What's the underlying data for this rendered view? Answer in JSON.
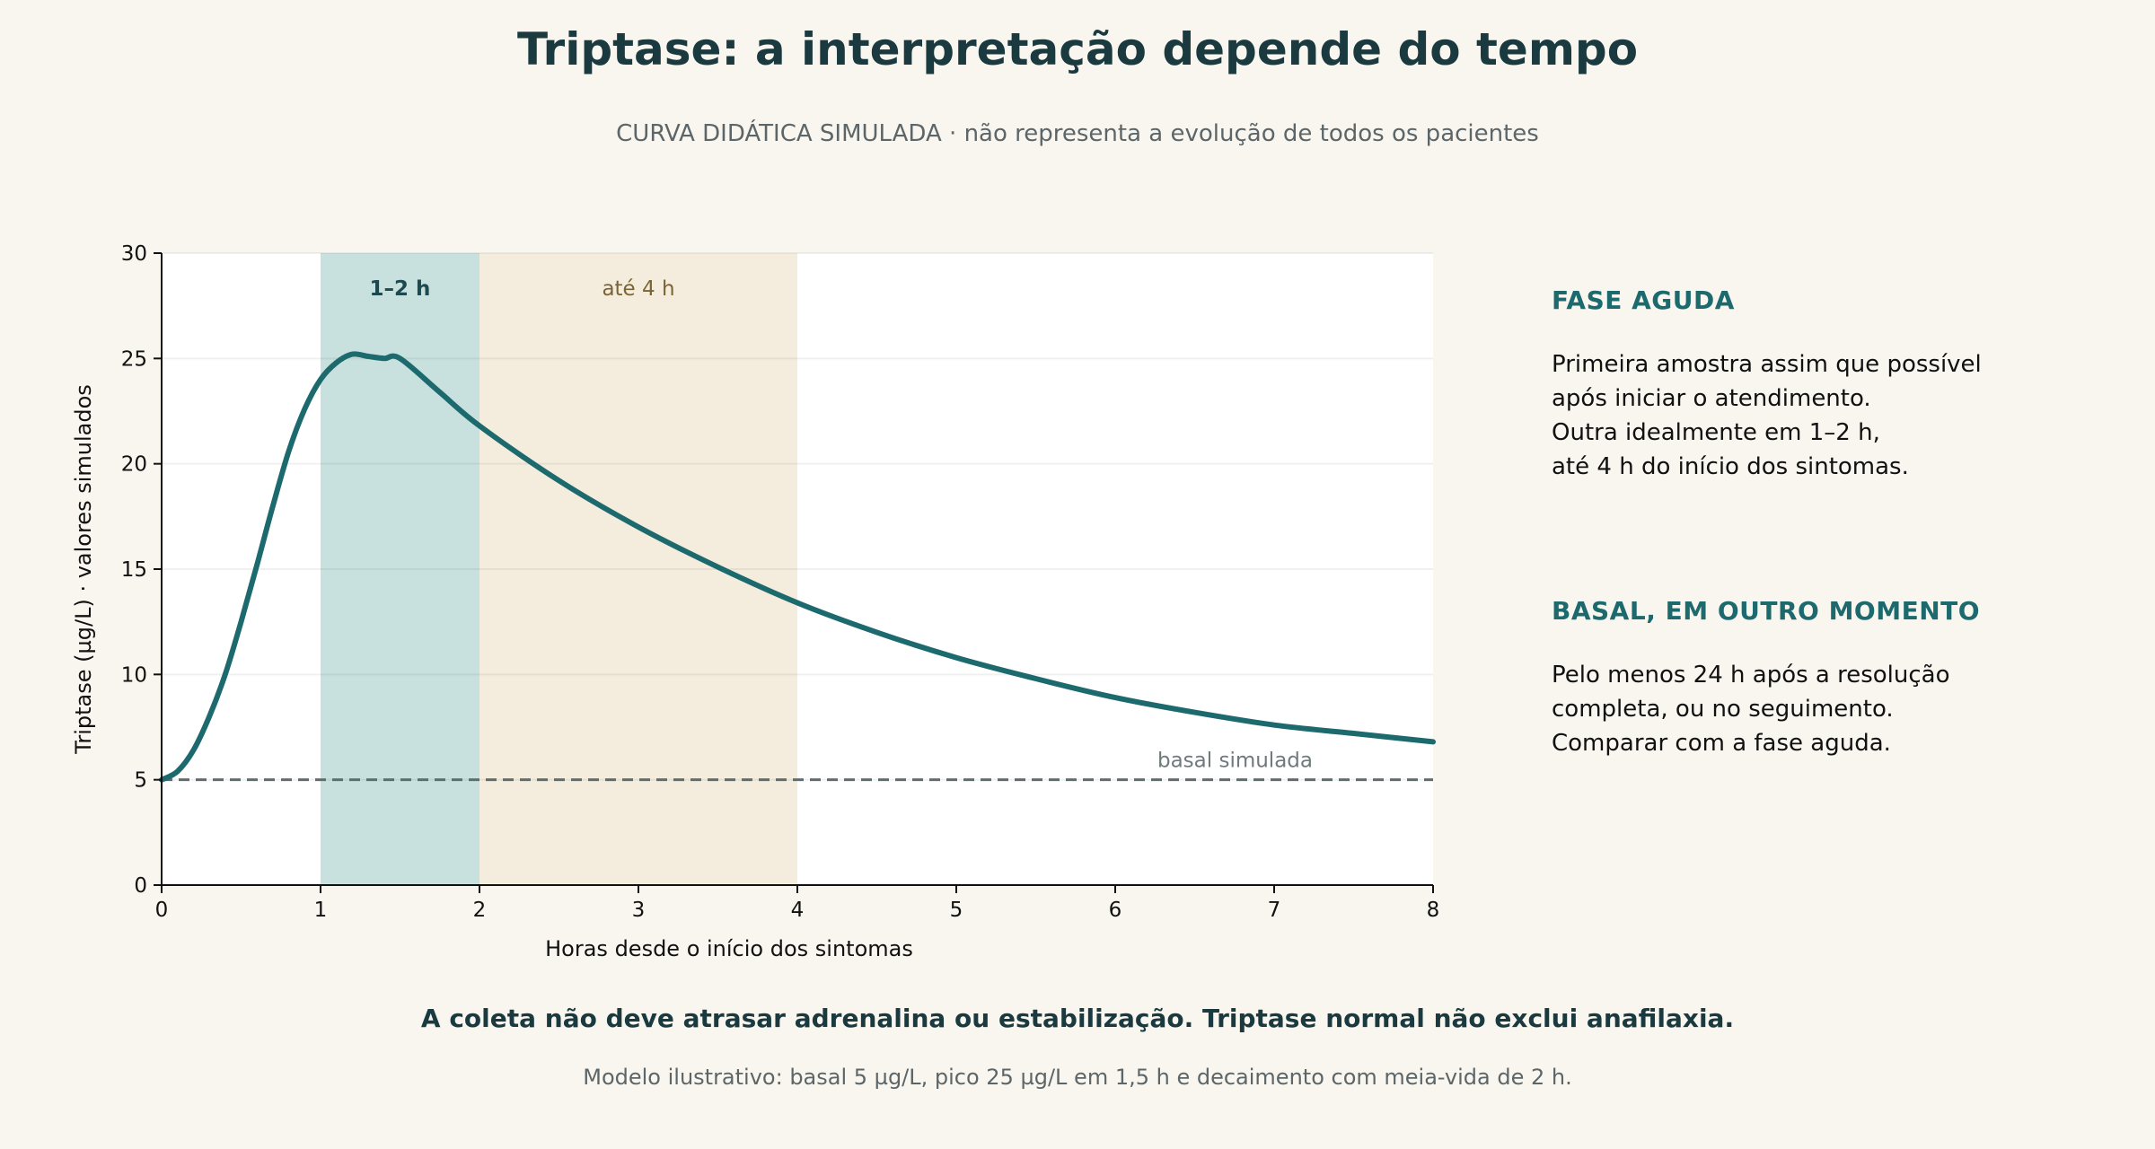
{
  "title": "Triptase: a interpretação depende do tempo",
  "subtitle": "CURVA DIDÁTICA SIMULADA · não representa a evolução de todos os pacientes",
  "chart_data": {
    "type": "line",
    "xlabel": "Horas desde o início dos sintomas",
    "ylabel": "Triptase (µg/L) · valores simulados",
    "xlim": [
      0,
      8
    ],
    "ylim": [
      0,
      30
    ],
    "x_ticks": [
      0,
      1,
      2,
      3,
      4,
      5,
      6,
      7,
      8
    ],
    "y_ticks": [
      0,
      5,
      10,
      15,
      20,
      25,
      30
    ],
    "grid": "horizontal",
    "series": [
      {
        "color": "#1c6a6e",
        "x": [
          0,
          0.1,
          0.2,
          0.3,
          0.4,
          0.5,
          0.6,
          0.7,
          0.8,
          0.9,
          1.0,
          1.1,
          1.2,
          1.3,
          1.4,
          1.5,
          1.75,
          2.0,
          2.5,
          3.0,
          3.5,
          4.0,
          4.5,
          5.0,
          5.5,
          6.0,
          6.5,
          7.0,
          7.5,
          8.0
        ],
        "y": [
          5.0,
          5.4,
          6.4,
          8.0,
          10.0,
          12.5,
          15.2,
          18.0,
          20.6,
          22.6,
          24.0,
          24.8,
          25.2,
          25.1,
          25.0,
          25.0,
          23.4,
          21.8,
          19.2,
          17.0,
          15.1,
          13.4,
          12.0,
          10.8,
          9.8,
          8.9,
          8.2,
          7.6,
          7.2,
          6.8
        ]
      }
    ],
    "bands": [
      {
        "x": [
          1,
          2
        ],
        "label": "1–2 h",
        "color": "#c8e1de",
        "label_color": "#1c4a4e"
      },
      {
        "x": [
          2,
          4
        ],
        "label": "até 4 h",
        "color": "#f4eddd",
        "label_color": "#7a6436"
      }
    ],
    "baseline": {
      "y": 5,
      "label": "basal simulada",
      "color": "#5e6d70"
    }
  },
  "side": {
    "acute": {
      "heading": "FASE AGUDA",
      "lines": [
        "Primeira amostra assim que possível",
        "após iniciar o atendimento.",
        "Outra idealmente em 1–2 h,",
        "até 4 h do início dos sintomas."
      ]
    },
    "basal": {
      "heading": "BASAL, EM OUTRO MOMENTO",
      "lines": [
        "Pelo menos 24 h após a resolução",
        "completa, ou no seguimento.",
        "Comparar com a fase aguda."
      ]
    }
  },
  "footer": {
    "main": "A coleta não deve atrasar adrenalina ou estabilização. Triptase normal não exclui anafilaxia.",
    "note": "Modelo ilustrativo: basal 5 µg/L, pico 25 µg/L em 1,5 h e decaimento com meia-vida de 2 h."
  }
}
